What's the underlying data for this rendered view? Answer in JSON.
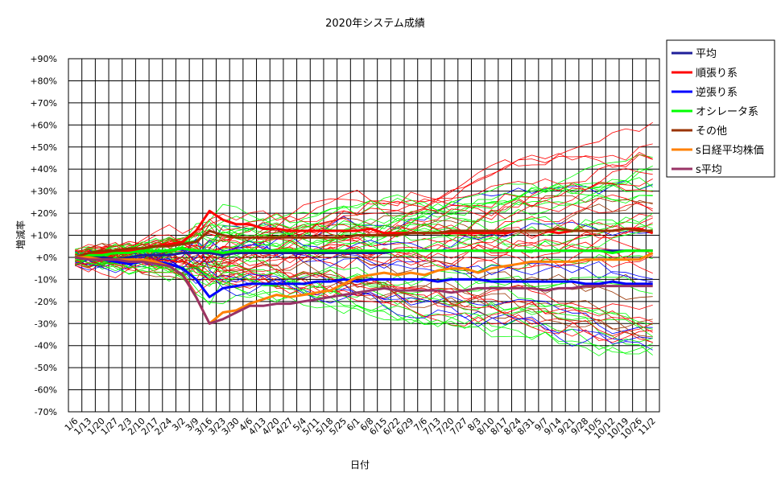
{
  "chart_data": {
    "type": "line",
    "title": "2020年システム成績",
    "xlabel": "日付",
    "ylabel": "増減率",
    "ylim": [
      -70,
      90
    ],
    "y_ticks": [
      "-70%",
      "-60%",
      "-50%",
      "-40%",
      "-30%",
      "-20%",
      "-10%",
      "+0%",
      "+10%",
      "+20%",
      "+30%",
      "+40%",
      "+50%",
      "+60%",
      "+70%",
      "+80%",
      "+90%"
    ],
    "x": [
      "1/6",
      "1/13",
      "1/20",
      "1/27",
      "2/3",
      "2/10",
      "2/17",
      "2/24",
      "3/2",
      "3/9",
      "3/16",
      "3/23",
      "3/30",
      "4/6",
      "4/13",
      "4/20",
      "4/27",
      "5/4",
      "5/11",
      "5/18",
      "5/25",
      "6/1",
      "6/8",
      "6/15",
      "6/22",
      "6/29",
      "7/6",
      "7/13",
      "7/20",
      "7/27",
      "8/3",
      "8/10",
      "8/17",
      "8/24",
      "8/31",
      "9/7",
      "9/14",
      "9/21",
      "9/28",
      "10/5",
      "10/12",
      "10/19",
      "10/26",
      "11/2"
    ],
    "grid": true,
    "legend_position": "right",
    "series": [
      {
        "name": "平均",
        "color": "#1f1f99",
        "values": [
          0,
          0,
          0,
          -1,
          0,
          1,
          1,
          1,
          2,
          2,
          2,
          1,
          2,
          2,
          2,
          2,
          2,
          2,
          2,
          2,
          2,
          2,
          2,
          2,
          3,
          3,
          3,
          3,
          3,
          3,
          3,
          3,
          3,
          3,
          3,
          3,
          3,
          3,
          3,
          3,
          3,
          3,
          3,
          3
        ]
      },
      {
        "name": "順張り系",
        "color": "#ff0000",
        "values": [
          0,
          2,
          2,
          3,
          3,
          4,
          5,
          6,
          7,
          12,
          21,
          17,
          15,
          15,
          13,
          13,
          12,
          12,
          12,
          12,
          12,
          12,
          13,
          11,
          11,
          11,
          11,
          11,
          11,
          11,
          11,
          11,
          11,
          12,
          12,
          12,
          11,
          12,
          12,
          12,
          12,
          13,
          13,
          11
        ]
      },
      {
        "name": "逆張り系",
        "color": "#0000ff",
        "values": [
          0,
          -1,
          -1,
          -2,
          -3,
          -2,
          -2,
          -3,
          -5,
          -10,
          -18,
          -14,
          -13,
          -12,
          -12,
          -12,
          -12,
          -12,
          -11,
          -11,
          -10,
          -11,
          -10,
          -10,
          -10,
          -10,
          -10,
          -11,
          -10,
          -10,
          -10,
          -11,
          -11,
          -11,
          -11,
          -11,
          -11,
          -11,
          -12,
          -12,
          -11,
          -12,
          -12,
          -12
        ]
      },
      {
        "name": "オシレータ系",
        "color": "#00ff00",
        "values": [
          0,
          1,
          1,
          2,
          2,
          3,
          3,
          3,
          4,
          3,
          3,
          2,
          3,
          3,
          3,
          3,
          3,
          3,
          3,
          3,
          3,
          3,
          3,
          3,
          3,
          3,
          3,
          3,
          3,
          3,
          3,
          3,
          3,
          3,
          3,
          3,
          3,
          3,
          3,
          3,
          2,
          3,
          3,
          3
        ]
      },
      {
        "name": "その他",
        "color": "#993300",
        "values": [
          0,
          2,
          3,
          3,
          4,
          4,
          5,
          5,
          6,
          7,
          12,
          10,
          9,
          9,
          9,
          9,
          9,
          9,
          9,
          9,
          9,
          10,
          10,
          10,
          10,
          11,
          11,
          11,
          12,
          12,
          12,
          12,
          12,
          12,
          12,
          12,
          13,
          12,
          12,
          12,
          12,
          13,
          12,
          12
        ]
      },
      {
        "name": "s日経平均株価",
        "color": "#ff8000",
        "values": [
          0,
          0,
          -1,
          -1,
          -1,
          -1,
          -2,
          -4,
          -8,
          -18,
          -30,
          -25,
          -24,
          -21,
          -19,
          -17,
          -18,
          -17,
          -16,
          -15,
          -12,
          -9,
          -8,
          -7,
          -8,
          -7,
          -8,
          -6,
          -5,
          -5,
          -7,
          -5,
          -4,
          -3,
          -2,
          -2,
          -2,
          -2,
          -1,
          -1,
          -1,
          -1,
          -1,
          2
        ]
      },
      {
        "name": "s平均",
        "color": "#993366",
        "values": [
          0,
          -1,
          -1,
          -1,
          -2,
          -2,
          -3,
          -4,
          -8,
          -18,
          -30,
          -28,
          -25,
          -22,
          -22,
          -21,
          -21,
          -20,
          -19,
          -18,
          -17,
          -16,
          -15,
          -14,
          -15,
          -15,
          -15,
          -15,
          -16,
          -15,
          -14,
          -14,
          -14,
          -14,
          -14,
          -15,
          -14,
          -14,
          -13,
          -13,
          -13,
          -13,
          -13,
          -13
        ]
      }
    ]
  }
}
